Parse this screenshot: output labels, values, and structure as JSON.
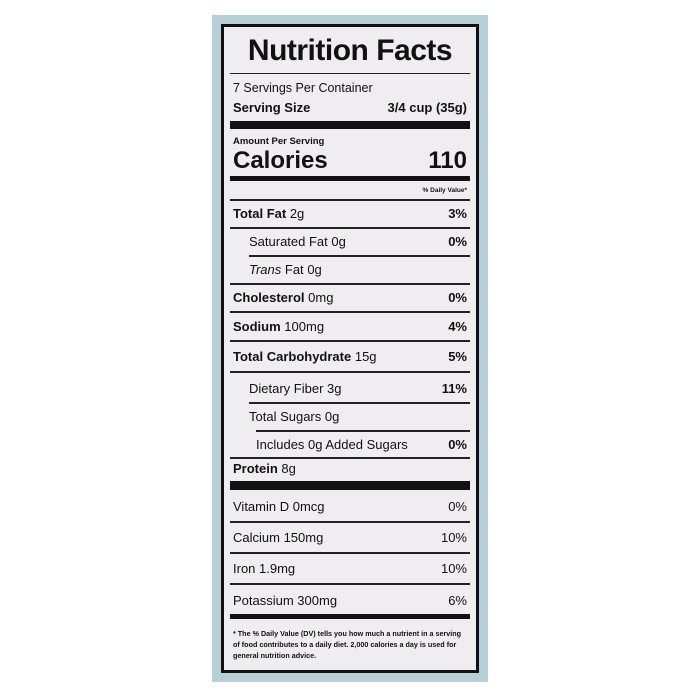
{
  "header": {
    "title": "Nutrition Facts",
    "servings": "7 Servings Per Container",
    "serving_size_label": "Serving Size",
    "serving_size_value": "3/4 cup (35g)"
  },
  "calories": {
    "amount_per_serving": "Amount Per Serving",
    "label": "Calories",
    "value": "110"
  },
  "daily_value_heading": "% Daily Value*",
  "nutrients": [
    {
      "name": "Total Fat",
      "amount": "2g",
      "dv": "3%"
    },
    {
      "name": "Saturated Fat",
      "amount": "0g",
      "dv": "0%"
    },
    {
      "prefix": "Trans",
      "name": "Fat",
      "amount": "0g"
    },
    {
      "name": "Cholesterol",
      "amount": "0mg",
      "dv": "0%"
    },
    {
      "name": "Sodium",
      "amount": "100mg",
      "dv": "4%"
    },
    {
      "name": "Total Carbohydrate",
      "amount": "15g",
      "dv": "5%"
    },
    {
      "name": "Dietary Fiber",
      "amount": "3g",
      "dv": "11%"
    },
    {
      "name": "Total Sugars",
      "amount": "0g"
    },
    {
      "name": "Includes 0g Added Sugars",
      "dv": "0%"
    },
    {
      "name": "Protein",
      "amount": "8g"
    }
  ],
  "vitamins": [
    {
      "name": "Vitamin D 0mcg",
      "dv": "0%"
    },
    {
      "name": "Calcium 150mg",
      "dv": "10%"
    },
    {
      "name": "Iron 1.9mg",
      "dv": "10%"
    },
    {
      "name": "Potassium 300mg",
      "dv": "6%"
    }
  ],
  "footnote": "* The % Daily Value (DV) tells you how much a nutrient in a serving of food contributes to a daily diet. 2,000 calories a day is used for general nutrition advice."
}
